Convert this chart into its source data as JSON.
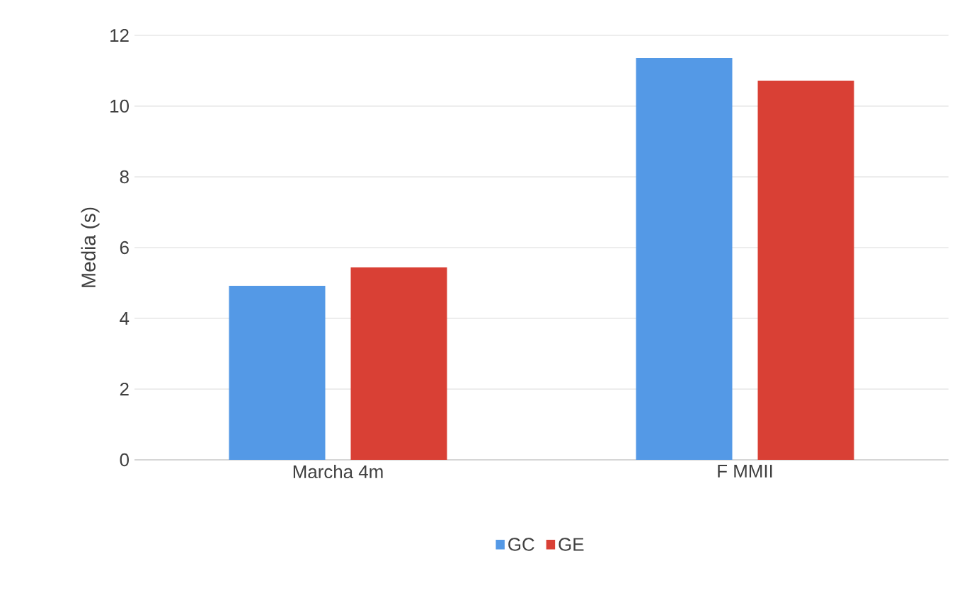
{
  "chart_data": {
    "type": "bar",
    "ylabel": "Media (s)",
    "categories": [
      "Marcha 4m",
      "F MMII"
    ],
    "series": [
      {
        "name": "GC",
        "color": "#5499e6",
        "values": [
          4.92,
          11.36
        ]
      },
      {
        "name": "GE",
        "color": "#d94035",
        "values": [
          5.44,
          10.72
        ]
      }
    ],
    "ylim": [
      0,
      12
    ],
    "yticks": [
      0,
      2,
      4,
      6,
      8,
      10,
      12
    ],
    "grid": "y",
    "legend": "bottom"
  }
}
